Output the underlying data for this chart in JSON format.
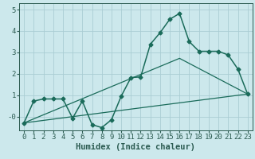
{
  "xlabel": "Humidex (Indice chaleur)",
  "xlim": [
    -0.5,
    23.5
  ],
  "ylim": [
    -0.65,
    5.3
  ],
  "background_color": "#cce8ec",
  "grid_color": "#aacdd4",
  "line_color": "#1a6b5a",
  "x_ticks": [
    0,
    1,
    2,
    3,
    4,
    5,
    6,
    7,
    8,
    9,
    10,
    11,
    12,
    13,
    14,
    15,
    16,
    17,
    18,
    19,
    20,
    21,
    22,
    23
  ],
  "y_ticks": [
    0,
    1,
    2,
    3,
    4,
    5
  ],
  "y_tick_labels": [
    "-0",
    "1",
    "2",
    "3",
    "4",
    "5"
  ],
  "line1_x": [
    0,
    1,
    2,
    3,
    4,
    5,
    6,
    7,
    8,
    9,
    10,
    11,
    12,
    13,
    14,
    15,
    16,
    17,
    18,
    19,
    20,
    21,
    22,
    23
  ],
  "line1_y": [
    -0.3,
    0.72,
    0.82,
    0.82,
    0.82,
    -0.08,
    0.72,
    -0.38,
    -0.52,
    -0.15,
    0.95,
    1.82,
    1.85,
    3.38,
    3.92,
    4.55,
    4.82,
    3.5,
    3.05,
    3.05,
    3.05,
    2.88,
    2.22,
    1.05
  ],
  "line2_x": [
    0,
    23
  ],
  "line2_y": [
    -0.3,
    1.05
  ],
  "line3_x": [
    0,
    16,
    23
  ],
  "line3_y": [
    -0.3,
    2.72,
    1.05
  ],
  "marker_style": "D",
  "marker_size": 2.5,
  "font_color": "#2a5a50",
  "tick_fontsize": 6.5,
  "xlabel_fontsize": 7.5
}
